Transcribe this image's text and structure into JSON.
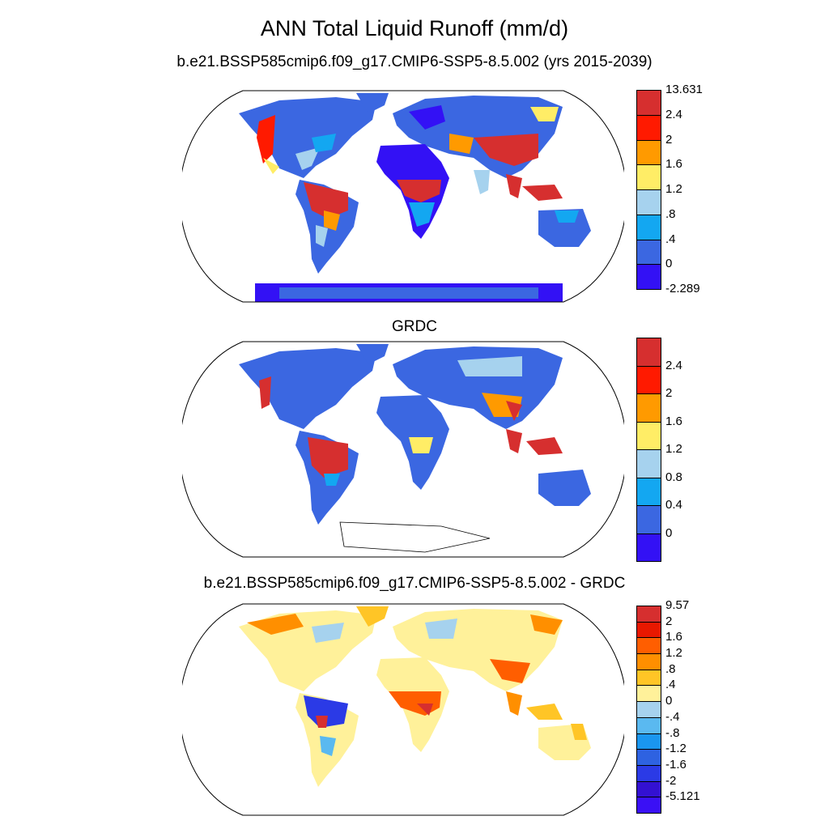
{
  "title": "ANN Total Liquid Runoff (mm/d)",
  "panels": [
    {
      "subtitle": "b.e21.BSSP585cmip6.f09_g17.CMIP6-SSP5-8.5.002 (yrs 2015-2039)",
      "colorbar": {
        "colors": [
          "#d62f2f",
          "#ff1a00",
          "#ff9a00",
          "#ffed66",
          "#a6d2ee",
          "#13a7f1",
          "#3b67e1",
          "#3311f5"
        ],
        "labels": [
          "13.631",
          "2.4",
          "2",
          "1.6",
          "1.2",
          ".8",
          ".4",
          "0",
          "-2.289"
        ]
      }
    },
    {
      "subtitle": "GRDC",
      "colorbar": {
        "colors": [
          "#d62f2f",
          "#ff1a00",
          "#ff9a00",
          "#ffed66",
          "#a6d2ee",
          "#13a7f1",
          "#3b67e1",
          "#3311f5"
        ],
        "labels": [
          "",
          "2.4",
          "2",
          "1.6",
          "1.2",
          "0.8",
          "0.4",
          "0",
          ""
        ]
      }
    },
    {
      "subtitle": "b.e21.BSSP585cmip6.f09_g17.CMIP6-SSP5-8.5.002 - GRDC",
      "colorbar": {
        "colors": [
          "#d62f2f",
          "#e81800",
          "#ff5e00",
          "#ff8f00",
          "#ffc526",
          "#fff19a",
          "#a6d2ee",
          "#5ab9f0",
          "#1a96ef",
          "#2e62e1",
          "#2b3ae6",
          "#3311d2",
          "#3a10f5"
        ],
        "labels": [
          "9.57",
          "2",
          "1.6",
          "1.2",
          ".8",
          ".4",
          "0",
          "-.4",
          "-.8",
          "-1.2",
          "-1.6",
          "-2",
          "-5.121"
        ]
      }
    }
  ]
}
